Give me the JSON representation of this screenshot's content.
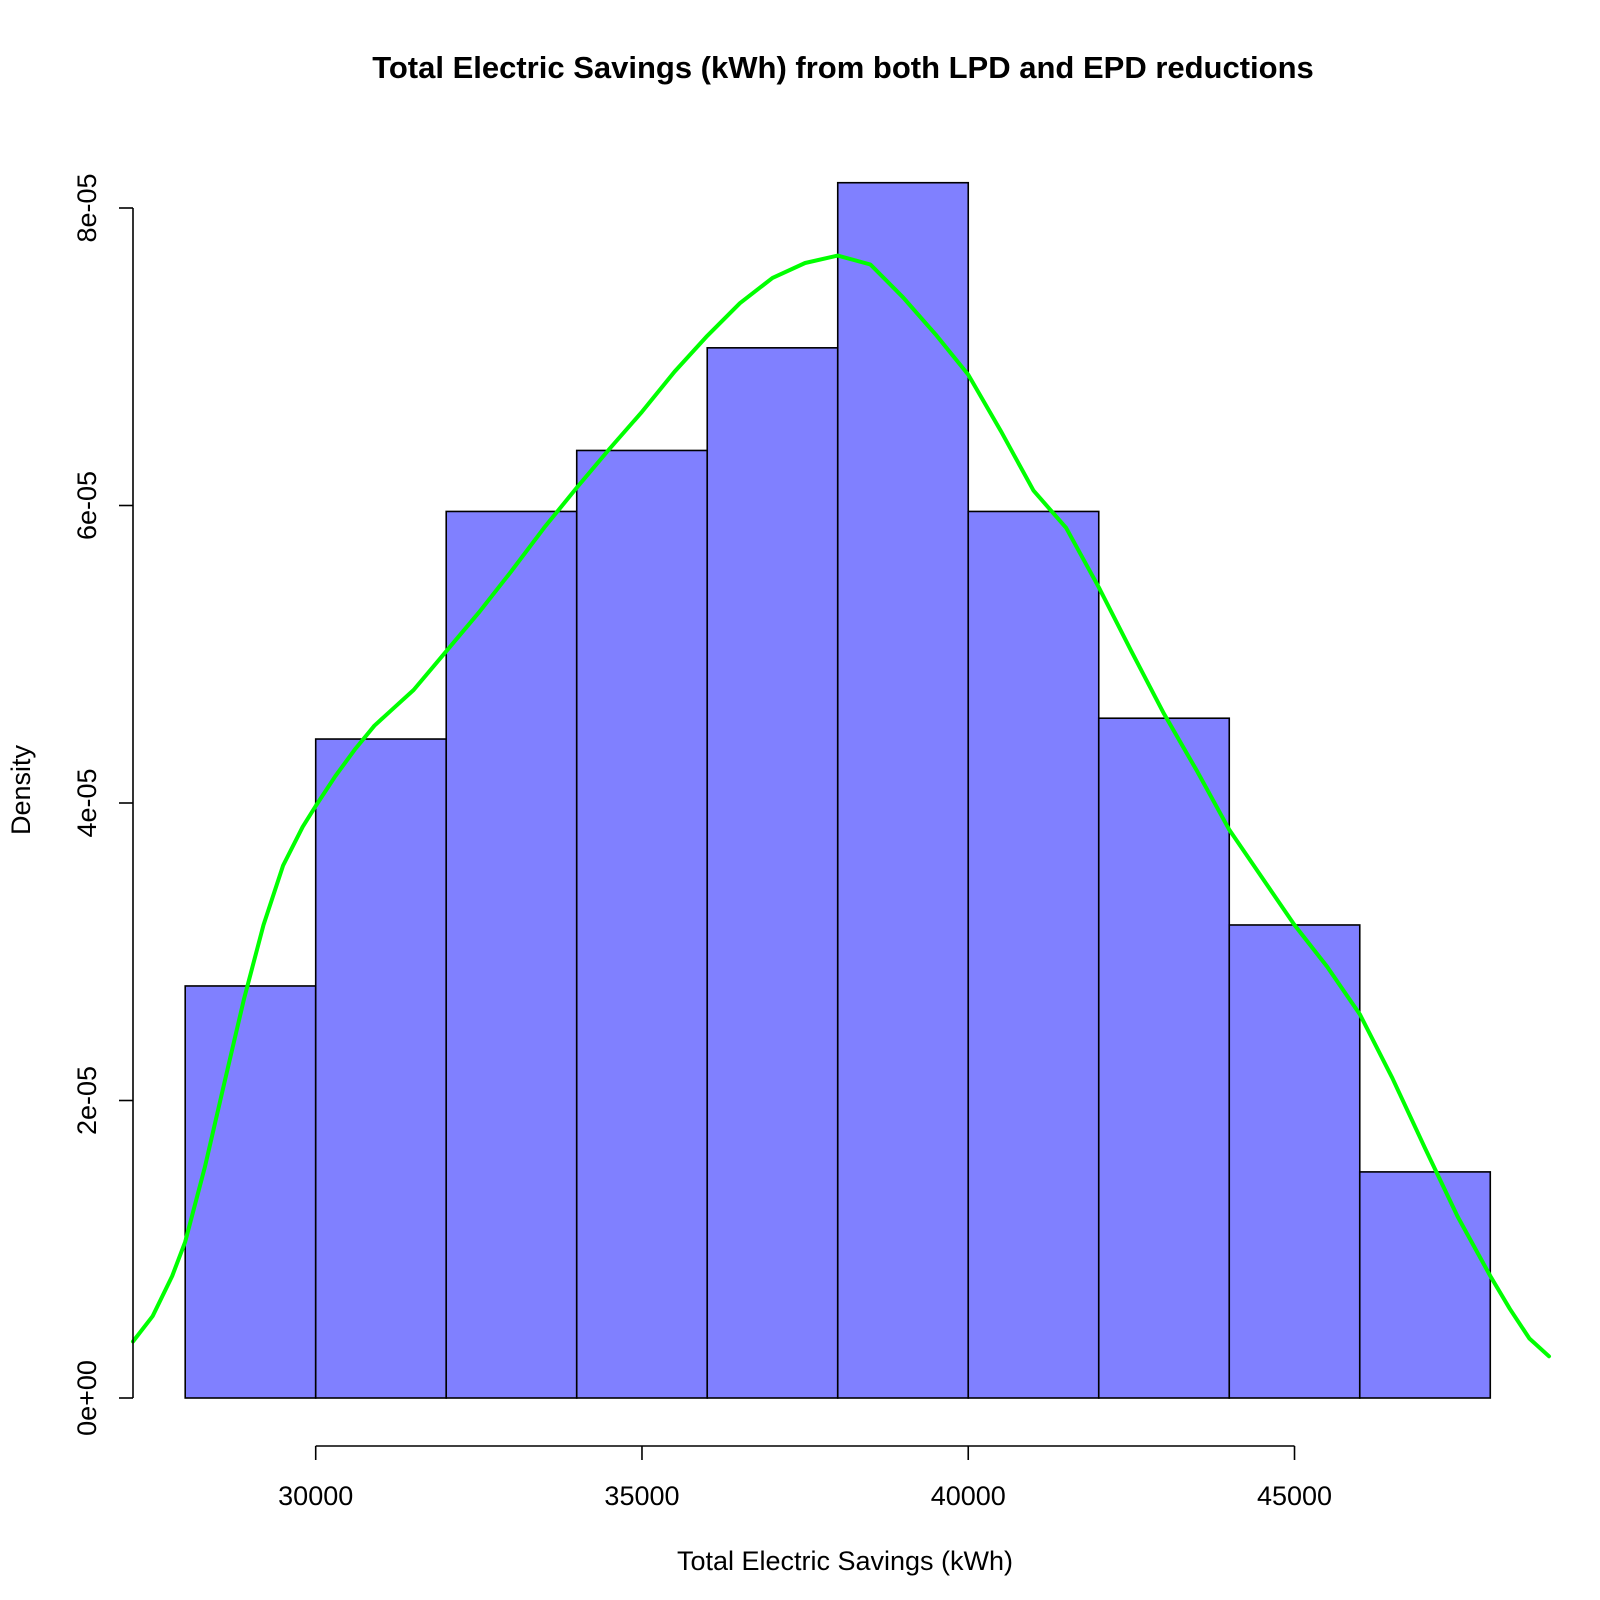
{
  "chart_data": {
    "type": "bar",
    "title": "Total Electric Savings (kWh) from both LPD and EPD reductions",
    "xlabel": "Total Electric Savings (kWh)",
    "ylabel": "Density",
    "xlim": [
      27200,
      48900
    ],
    "ylim": [
      0,
      8e-05
    ],
    "x_ticks": [
      30000,
      35000,
      40000,
      45000
    ],
    "x_tick_labels": [
      "30000",
      "35000",
      "40000",
      "45000"
    ],
    "y_ticks": [
      0,
      2e-05,
      4e-05,
      6e-05,
      8e-05
    ],
    "y_tick_labels": [
      "0e+00",
      "2e-05",
      "4e-05",
      "6e-05",
      "8e-05"
    ],
    "bar_fill_color": "#8080ff",
    "bar_border_color": "#000000",
    "density_color": "#00ff00",
    "grid": false,
    "legend": "none",
    "bins": [
      {
        "start": 28000,
        "end": 30000,
        "density": 2.77e-05
      },
      {
        "start": 30000,
        "end": 32000,
        "density": 4.43e-05
      },
      {
        "start": 32000,
        "end": 34000,
        "density": 5.96e-05
      },
      {
        "start": 34000,
        "end": 36000,
        "density": 6.37e-05
      },
      {
        "start": 36000,
        "end": 38000,
        "density": 7.06e-05
      },
      {
        "start": 38000,
        "end": 40000,
        "density": 8.17e-05
      },
      {
        "start": 40000,
        "end": 42000,
        "density": 5.96e-05
      },
      {
        "start": 42000,
        "end": 44000,
        "density": 4.57e-05
      },
      {
        "start": 44000,
        "end": 46000,
        "density": 3.18e-05
      },
      {
        "start": 46000,
        "end": 48000,
        "density": 1.52e-05
      }
    ],
    "density_curve": {
      "x": [
        27200,
        27500,
        27800,
        28000,
        28300,
        28600,
        28900,
        29200,
        29500,
        29800,
        30000,
        30300,
        30600,
        30900,
        31200,
        31500,
        32000,
        32500,
        33000,
        33500,
        34000,
        34500,
        35000,
        35500,
        36000,
        36500,
        37000,
        37500,
        38000,
        38500,
        39000,
        39500,
        40000,
        40500,
        41000,
        41500,
        42000,
        42500,
        43000,
        43500,
        44000,
        44500,
        45000,
        45500,
        46000,
        46500,
        47000,
        47500,
        48000,
        48300,
        48600,
        48900
      ],
      "y": [
        3.8e-06,
        5.5e-06,
        8.2e-06,
        1.05e-05,
        1.55e-05,
        2.12e-05,
        2.68e-05,
        3.18e-05,
        3.58e-05,
        3.84e-05,
        3.98e-05,
        4.18e-05,
        4.36e-05,
        4.52e-05,
        4.64e-05,
        4.76e-05,
        5.02e-05,
        5.28e-05,
        5.56e-05,
        5.85e-05,
        6.12e-05,
        6.38e-05,
        6.63e-05,
        6.9e-05,
        7.14e-05,
        7.36e-05,
        7.53e-05,
        7.63e-05,
        7.68e-05,
        7.62e-05,
        7.4e-05,
        7.15e-05,
        6.88e-05,
        6.5e-05,
        6.1e-05,
        5.85e-05,
        5.45e-05,
        5.02e-05,
        4.6e-05,
        4.22e-05,
        3.82e-05,
        3.5e-05,
        3.18e-05,
        2.9e-05,
        2.58e-05,
        2.15e-05,
        1.68e-05,
        1.22e-05,
        8.2e-06,
        6e-06,
        4e-06,
        2.8e-06
      ]
    }
  }
}
